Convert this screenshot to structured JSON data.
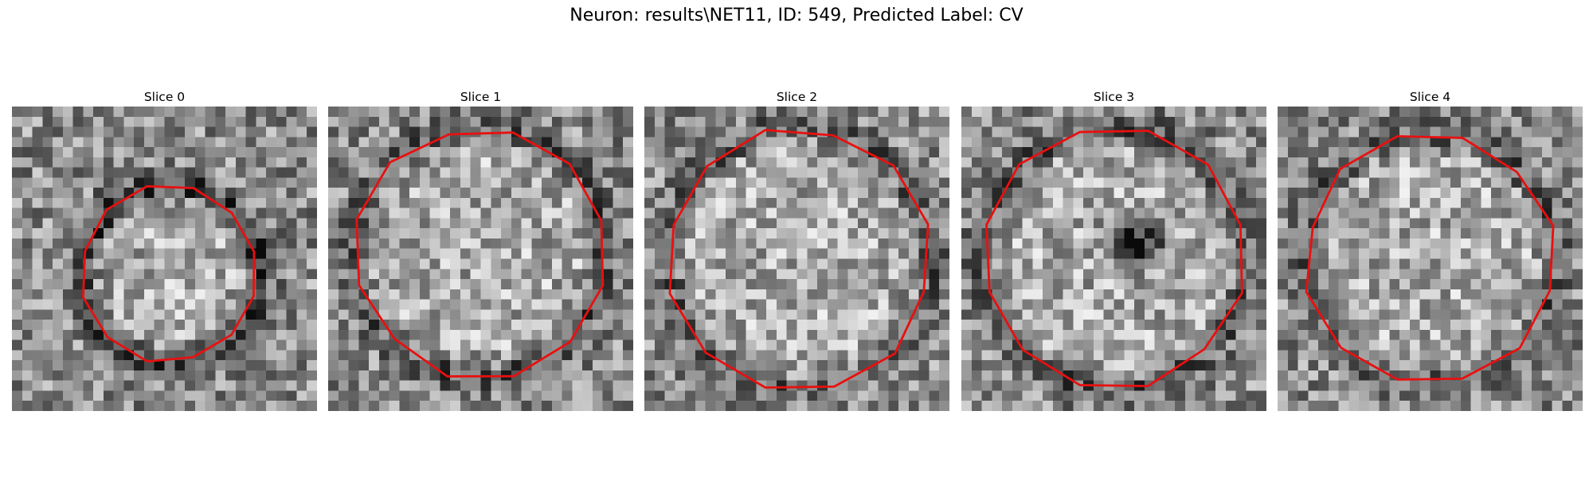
{
  "figure": {
    "title": "Neuron: results\\NET11, ID: 549, Predicted Label: CV",
    "contour_color": "#e81010",
    "colormap": "gray",
    "panels": [
      {
        "title": "Slice 0",
        "seed": 11,
        "center": [
          0.52,
          0.55
        ],
        "radius": 0.29,
        "ring_dark": 0.8,
        "blob": null
      },
      {
        "title": "Slice 1",
        "seed": 23,
        "center": [
          0.5,
          0.48
        ],
        "radius": 0.41,
        "ring_dark": 0.55,
        "blob": null
      },
      {
        "title": "Slice 2",
        "seed": 37,
        "center": [
          0.51,
          0.5
        ],
        "radius": 0.43,
        "ring_dark": 0.5,
        "blob": null
      },
      {
        "title": "Slice 3",
        "seed": 41,
        "center": [
          0.5,
          0.5
        ],
        "radius": 0.43,
        "ring_dark": 0.55,
        "blob": [
          0.57,
          0.45
        ]
      },
      {
        "title": "Slice 4",
        "seed": 53,
        "center": [
          0.5,
          0.5
        ],
        "radius": 0.41,
        "ring_dark": 0.5,
        "blob": null
      }
    ]
  }
}
